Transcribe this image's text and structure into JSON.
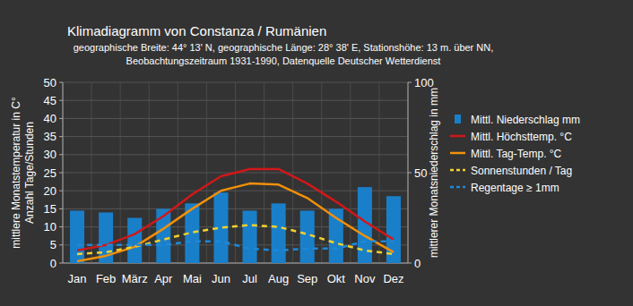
{
  "chart_data": {
    "type": "bar",
    "title": "Klimadiagramm von Constanza / Rumänien",
    "subtitle": [
      "geographische Breite: 44° 13' N, geographische Länge: 28° 38' E, Stationshöhe: 13 m. über NN,",
      "Beobachtungszeitraum 1931-1990, Datenquelle Deutscher Wetterdienst"
    ],
    "ylabel": [
      "mittlere Monatstemperatur in C°",
      "Anzahl Tage/Stunden"
    ],
    "y2label": "mittlerer Monatsniederschlag in mm",
    "categories": [
      "Jan",
      "Feb",
      "März",
      "Apr",
      "Mai",
      "Jun",
      "Jul",
      "Aug",
      "Sep",
      "Okt",
      "Nov",
      "Dez"
    ],
    "ylim": [
      0,
      50
    ],
    "yticks": [
      0,
      5,
      10,
      15,
      20,
      25,
      30,
      35,
      40,
      45,
      50
    ],
    "y2lim": [
      0,
      100
    ],
    "y2ticks": [
      0,
      50,
      100
    ],
    "grid": true,
    "legend": "right",
    "series": [
      {
        "name": "Mittl. Niederschlag mm",
        "type": "bar",
        "axis": "y2",
        "color": "#1a7fc9",
        "values": [
          29,
          28,
          25,
          30,
          33,
          39,
          29,
          33,
          29,
          30,
          42,
          37
        ]
      },
      {
        "name": "Mittl. Höchsttemp. °C",
        "type": "line",
        "color": "#d01818",
        "line_style": "solid",
        "values": [
          3.5,
          5,
          8,
          13,
          19,
          24,
          26,
          26,
          22,
          17,
          11.5,
          6.5
        ]
      },
      {
        "name": "Mittl. Tag-Temp. °C",
        "type": "line",
        "color": "#f0900a",
        "line_style": "solid",
        "values": [
          0.5,
          2,
          4.5,
          9.5,
          15,
          20,
          22,
          21.7,
          18,
          12.5,
          7.5,
          3
        ]
      },
      {
        "name": "Sonnenstunden / Tag",
        "type": "line",
        "color": "#f2d22e",
        "line_style": "dashed",
        "values": [
          2.5,
          3,
          4.5,
          6.5,
          8.5,
          9.8,
          10.5,
          10,
          8,
          5.5,
          3.5,
          2.5
        ]
      },
      {
        "name": "Regentage ≥ 1mm",
        "type": "line",
        "color": "#1e88d8",
        "line_style": "dashed",
        "values": [
          5,
          5,
          5,
          5,
          6,
          6,
          4,
          3.5,
          4,
          4,
          6,
          6
        ]
      }
    ]
  }
}
